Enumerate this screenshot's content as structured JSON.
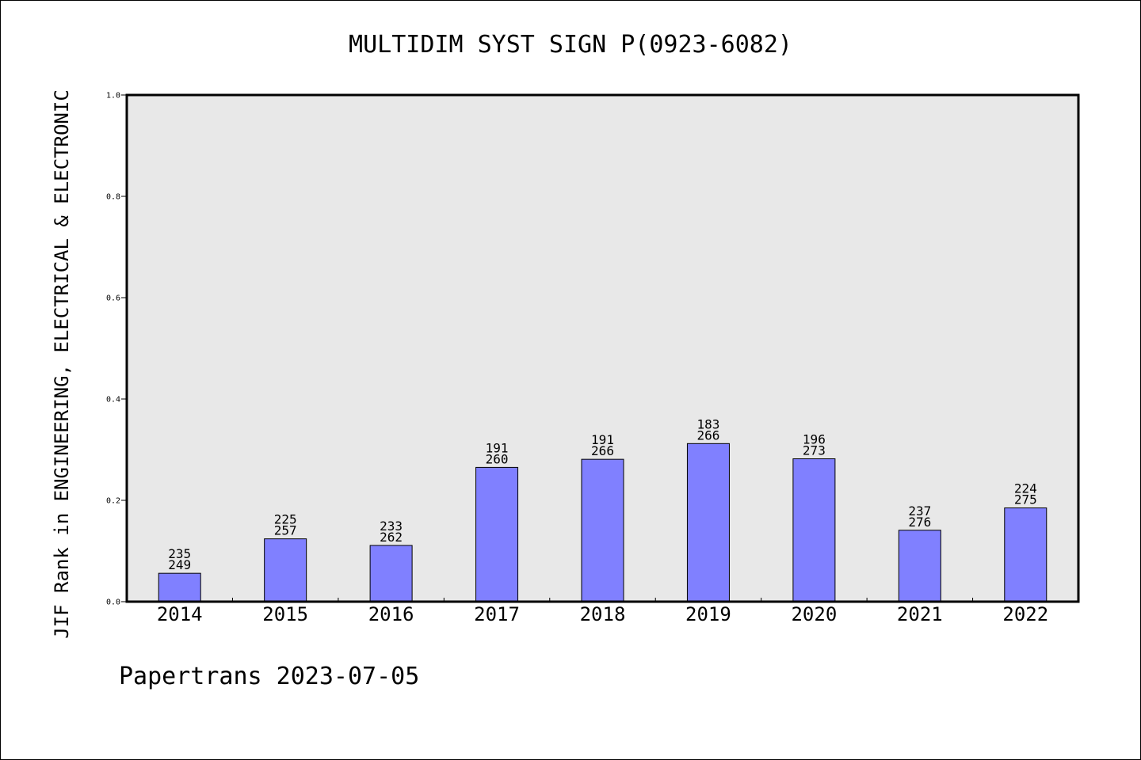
{
  "chart_data": {
    "type": "bar",
    "title": "MULTIDIM SYST SIGN P(0923-6082)",
    "xlabel": "",
    "ylabel": "JIF Rank in ENGINEERING, ELECTRICAL & ELECTRONIC",
    "ylim": [
      0,
      1.0
    ],
    "yticks": [
      "0.0",
      "0.2",
      "0.4",
      "0.6",
      "0.8",
      "1.0"
    ],
    "grid": false,
    "categories": [
      "2014",
      "2015",
      "2016",
      "2017",
      "2018",
      "2019",
      "2020",
      "2021",
      "2022"
    ],
    "values": [
      0.056,
      0.124,
      0.111,
      0.265,
      0.281,
      0.312,
      0.282,
      0.141,
      0.185
    ],
    "rank": [
      "235",
      "225",
      "233",
      "191",
      "191",
      "183",
      "196",
      "237",
      "224"
    ],
    "total": [
      "249",
      "257",
      "262",
      "260",
      "266",
      "266",
      "273",
      "276",
      "275"
    ],
    "colors": {
      "bar": "#8080ff",
      "plot_bg": "#e8e8e8",
      "axis": "#000000"
    }
  },
  "footer": "Papertrans 2023-07-05"
}
